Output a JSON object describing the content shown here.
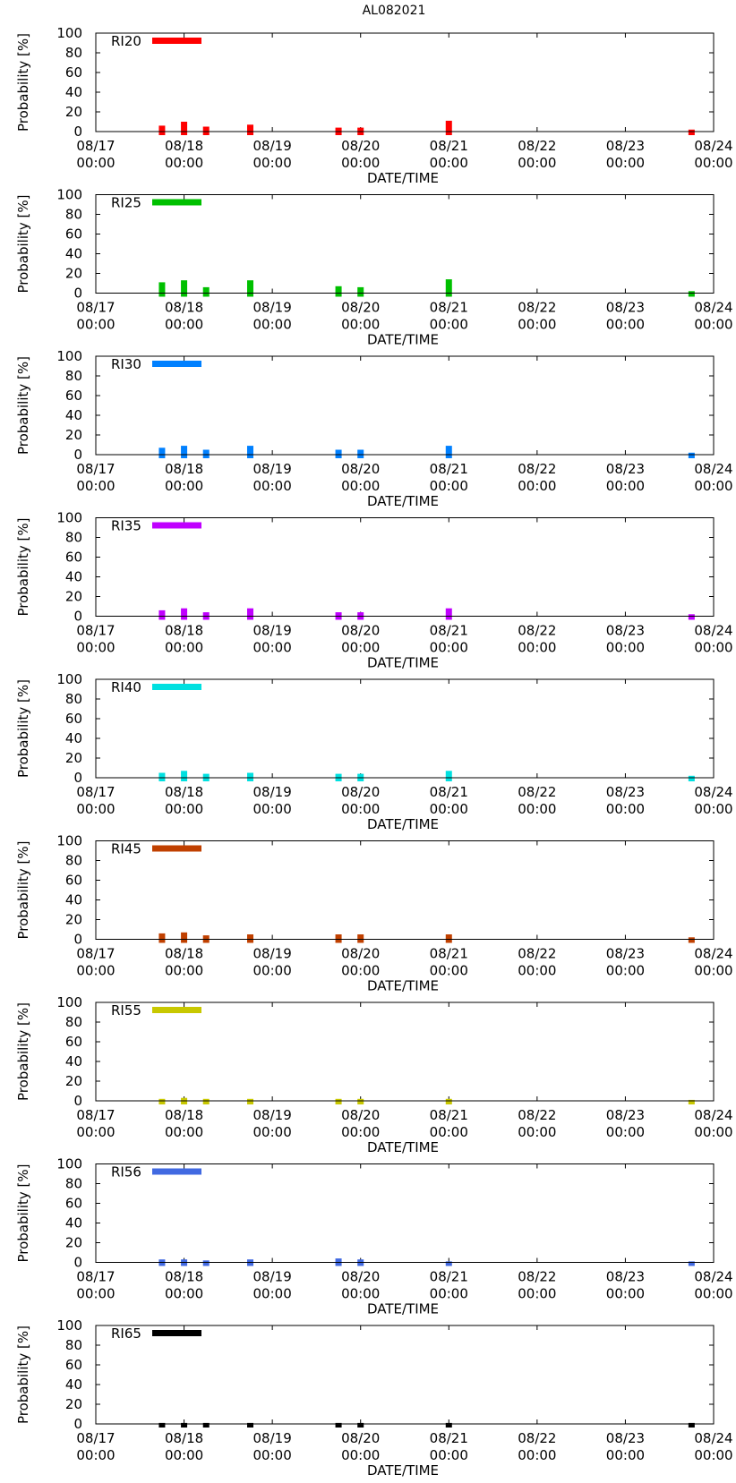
{
  "title": "AL082021",
  "chart_data": [
    {
      "type": "bar",
      "label": "RI20",
      "color": "#ff0000",
      "title": "AL082021",
      "ylabel": "Probability [%]",
      "xlabel": "DATE/TIME",
      "ylim": [
        0,
        100
      ],
      "yticks": [
        "0",
        "20",
        "40",
        "60",
        "80",
        "100"
      ],
      "xticks": [
        {
          "date": "08/17",
          "time": "00:00"
        },
        {
          "date": "08/18",
          "time": "00:00"
        },
        {
          "date": "08/19",
          "time": "00:00"
        },
        {
          "date": "08/20",
          "time": "00:00"
        },
        {
          "date": "08/21",
          "time": "00:00"
        },
        {
          "date": "08/22",
          "time": "00:00"
        },
        {
          "date": "08/23",
          "time": "00:00"
        },
        {
          "date": "08/24",
          "time": "00:00"
        }
      ],
      "x_hours": [
        18,
        24,
        30,
        42,
        66,
        72,
        96,
        162
      ],
      "values": [
        6,
        10,
        5,
        7,
        4,
        4,
        11,
        2
      ]
    },
    {
      "type": "bar",
      "label": "RI25",
      "color": "#00c000",
      "title": "AL082021",
      "ylabel": "Probability [%]",
      "xlabel": "DATE/TIME",
      "ylim": [
        0,
        100
      ],
      "yticks": [
        "0",
        "20",
        "40",
        "60",
        "80",
        "100"
      ],
      "xticks": [
        {
          "date": "08/17",
          "time": "00:00"
        },
        {
          "date": "08/18",
          "time": "00:00"
        },
        {
          "date": "08/19",
          "time": "00:00"
        },
        {
          "date": "08/20",
          "time": "00:00"
        },
        {
          "date": "08/21",
          "time": "00:00"
        },
        {
          "date": "08/22",
          "time": "00:00"
        },
        {
          "date": "08/23",
          "time": "00:00"
        },
        {
          "date": "08/24",
          "time": "00:00"
        }
      ],
      "x_hours": [
        18,
        24,
        30,
        42,
        66,
        72,
        96,
        162
      ],
      "values": [
        11,
        13,
        6,
        13,
        7,
        6,
        14,
        2
      ]
    },
    {
      "type": "bar",
      "label": "RI30",
      "color": "#0080ff",
      "title": "AL082021",
      "ylabel": "Probability [%]",
      "xlabel": "DATE/TIME",
      "ylim": [
        0,
        100
      ],
      "yticks": [
        "0",
        "20",
        "40",
        "60",
        "80",
        "100"
      ],
      "xticks": [
        {
          "date": "08/17",
          "time": "00:00"
        },
        {
          "date": "08/18",
          "time": "00:00"
        },
        {
          "date": "08/19",
          "time": "00:00"
        },
        {
          "date": "08/20",
          "time": "00:00"
        },
        {
          "date": "08/21",
          "time": "00:00"
        },
        {
          "date": "08/22",
          "time": "00:00"
        },
        {
          "date": "08/23",
          "time": "00:00"
        },
        {
          "date": "08/24",
          "time": "00:00"
        }
      ],
      "x_hours": [
        18,
        24,
        30,
        42,
        66,
        72,
        96,
        162
      ],
      "values": [
        7,
        9,
        5,
        9,
        5,
        5,
        9,
        2
      ]
    },
    {
      "type": "bar",
      "label": "RI35",
      "color": "#c000ff",
      "title": "AL082021",
      "ylabel": "Probability [%]",
      "xlabel": "DATE/TIME",
      "ylim": [
        0,
        100
      ],
      "yticks": [
        "0",
        "20",
        "40",
        "60",
        "80",
        "100"
      ],
      "xticks": [
        {
          "date": "08/17",
          "time": "00:00"
        },
        {
          "date": "08/18",
          "time": "00:00"
        },
        {
          "date": "08/19",
          "time": "00:00"
        },
        {
          "date": "08/20",
          "time": "00:00"
        },
        {
          "date": "08/21",
          "time": "00:00"
        },
        {
          "date": "08/22",
          "time": "00:00"
        },
        {
          "date": "08/23",
          "time": "00:00"
        },
        {
          "date": "08/24",
          "time": "00:00"
        }
      ],
      "x_hours": [
        18,
        24,
        30,
        42,
        66,
        72,
        96,
        162
      ],
      "values": [
        6,
        8,
        4,
        8,
        4,
        4,
        8,
        2
      ]
    },
    {
      "type": "bar",
      "label": "RI40",
      "color": "#00e0e0",
      "title": "AL082021",
      "ylabel": "Probability [%]",
      "xlabel": "DATE/TIME",
      "ylim": [
        0,
        100
      ],
      "yticks": [
        "0",
        "20",
        "40",
        "60",
        "80",
        "100"
      ],
      "xticks": [
        {
          "date": "08/17",
          "time": "00:00"
        },
        {
          "date": "08/18",
          "time": "00:00"
        },
        {
          "date": "08/19",
          "time": "00:00"
        },
        {
          "date": "08/20",
          "time": "00:00"
        },
        {
          "date": "08/21",
          "time": "00:00"
        },
        {
          "date": "08/22",
          "time": "00:00"
        },
        {
          "date": "08/23",
          "time": "00:00"
        },
        {
          "date": "08/24",
          "time": "00:00"
        }
      ],
      "x_hours": [
        18,
        24,
        30,
        42,
        66,
        72,
        96,
        162
      ],
      "values": [
        5,
        7,
        4,
        5,
        4,
        4,
        7,
        2
      ]
    },
    {
      "type": "bar",
      "label": "RI45",
      "color": "#c04000",
      "title": "AL082021",
      "ylabel": "Probability [%]",
      "xlabel": "DATE/TIME",
      "ylim": [
        0,
        100
      ],
      "yticks": [
        "0",
        "20",
        "40",
        "60",
        "80",
        "100"
      ],
      "xticks": [
        {
          "date": "08/17",
          "time": "00:00"
        },
        {
          "date": "08/18",
          "time": "00:00"
        },
        {
          "date": "08/19",
          "time": "00:00"
        },
        {
          "date": "08/20",
          "time": "00:00"
        },
        {
          "date": "08/21",
          "time": "00:00"
        },
        {
          "date": "08/22",
          "time": "00:00"
        },
        {
          "date": "08/23",
          "time": "00:00"
        },
        {
          "date": "08/24",
          "time": "00:00"
        }
      ],
      "x_hours": [
        18,
        24,
        30,
        42,
        66,
        72,
        96,
        162
      ],
      "values": [
        6,
        7,
        4,
        5,
        5,
        5,
        5,
        2
      ]
    },
    {
      "type": "bar",
      "label": "RI55",
      "color": "#c8c800",
      "title": "AL082021",
      "ylabel": "Probability [%]",
      "xlabel": "DATE/TIME",
      "ylim": [
        0,
        100
      ],
      "yticks": [
        "0",
        "20",
        "40",
        "60",
        "80",
        "100"
      ],
      "xticks": [
        {
          "date": "08/17",
          "time": "00:00"
        },
        {
          "date": "08/18",
          "time": "00:00"
        },
        {
          "date": "08/19",
          "time": "00:00"
        },
        {
          "date": "08/20",
          "time": "00:00"
        },
        {
          "date": "08/21",
          "time": "00:00"
        },
        {
          "date": "08/22",
          "time": "00:00"
        },
        {
          "date": "08/23",
          "time": "00:00"
        },
        {
          "date": "08/24",
          "time": "00:00"
        }
      ],
      "x_hours": [
        18,
        24,
        30,
        42,
        66,
        72,
        96,
        162
      ],
      "values": [
        2,
        3,
        2,
        2,
        2,
        2,
        2,
        1
      ]
    },
    {
      "type": "bar",
      "label": "RI56",
      "color": "#4169e1",
      "title": "AL082021",
      "ylabel": "Probability [%]",
      "xlabel": "DATE/TIME",
      "ylim": [
        0,
        100
      ],
      "yticks": [
        "0",
        "20",
        "40",
        "60",
        "80",
        "100"
      ],
      "xticks": [
        {
          "date": "08/17",
          "time": "00:00"
        },
        {
          "date": "08/18",
          "time": "00:00"
        },
        {
          "date": "08/19",
          "time": "00:00"
        },
        {
          "date": "08/20",
          "time": "00:00"
        },
        {
          "date": "08/21",
          "time": "00:00"
        },
        {
          "date": "08/22",
          "time": "00:00"
        },
        {
          "date": "08/23",
          "time": "00:00"
        },
        {
          "date": "08/24",
          "time": "00:00"
        }
      ],
      "x_hours": [
        18,
        24,
        30,
        42,
        66,
        72,
        96,
        162
      ],
      "values": [
        3,
        3,
        2,
        3,
        4,
        3,
        1,
        1
      ]
    },
    {
      "type": "bar",
      "label": "RI65",
      "color": "#000000",
      "title": "AL082021",
      "ylabel": "Probability [%]",
      "xlabel": "DATE/TIME",
      "ylim": [
        0,
        100
      ],
      "yticks": [
        "0",
        "20",
        "40",
        "60",
        "80",
        "100"
      ],
      "xticks": [
        {
          "date": "08/17",
          "time": "00:00"
        },
        {
          "date": "08/18",
          "time": "00:00"
        },
        {
          "date": "08/19",
          "time": "00:00"
        },
        {
          "date": "08/20",
          "time": "00:00"
        },
        {
          "date": "08/21",
          "time": "00:00"
        },
        {
          "date": "08/22",
          "time": "00:00"
        },
        {
          "date": "08/23",
          "time": "00:00"
        },
        {
          "date": "08/24",
          "time": "00:00"
        }
      ],
      "x_hours": [
        18,
        24,
        30,
        42,
        66,
        72,
        96,
        162
      ],
      "values": [
        1,
        1,
        1,
        1,
        1,
        1,
        1,
        1
      ]
    }
  ]
}
